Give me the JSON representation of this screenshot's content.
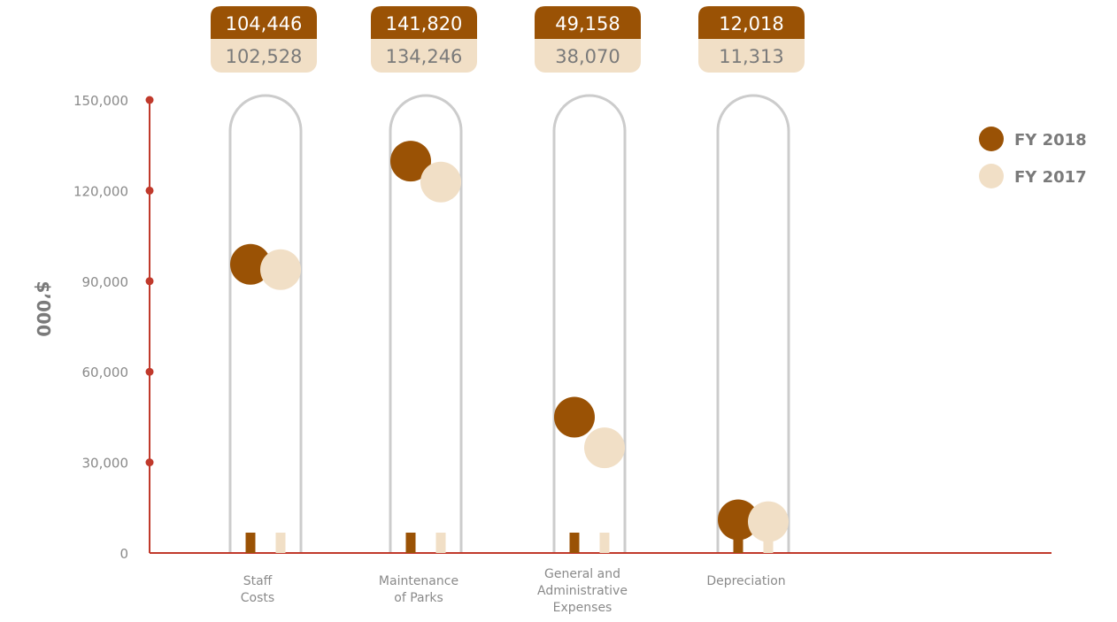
{
  "chart_data": {
    "type": "lollipop",
    "ylabel": "$’000",
    "ylim": [
      0,
      150000
    ],
    "yticks": [
      "0",
      "30,000",
      "60,000",
      "90,000",
      "120,000",
      "150,000"
    ],
    "ytick_values": [
      0,
      30000,
      60000,
      90000,
      120000,
      150000
    ],
    "categories": [
      [
        "Staff",
        "Costs"
      ],
      [
        "Maintenance",
        "of Parks"
      ],
      [
        "General and",
        "Administrative",
        "Expenses"
      ],
      [
        "Depreciation"
      ]
    ],
    "series": [
      {
        "name": "FY 2018",
        "color": "#9a5205",
        "values": [
          104446,
          141820,
          49158,
          12018
        ],
        "labels": [
          "104,446",
          "141,820",
          "49,158",
          "12,018"
        ]
      },
      {
        "name": "FY 2017",
        "color": "#f1dfc6",
        "values": [
          102528,
          134246,
          38070,
          11313
        ],
        "labels": [
          "102,528",
          "134,246",
          "38,070",
          "11,313"
        ]
      }
    ],
    "legend_position": "top-right",
    "axis_color": "#c0392b",
    "outline_color": "#cccccc"
  }
}
